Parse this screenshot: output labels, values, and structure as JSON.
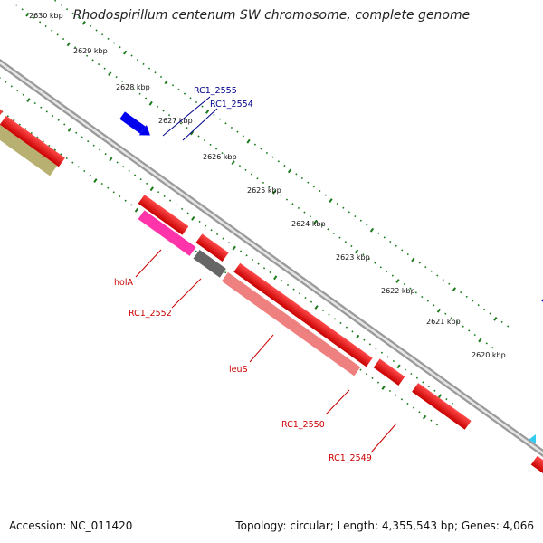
{
  "title": "Rhodospirillum centenum SW chromosome, complete genome",
  "accession": "Accession: NC_011420",
  "stats": "Topology: circular; Length: 4,355,543 bp; Genes: 4,066",
  "kbp_ticks": [
    "2630 kbp",
    "2629 kbp",
    "2628 kbp",
    "2627 kbp",
    "2626 kbp",
    "2625 kbp",
    "2624 kbp",
    "2623 kbp",
    "2622 kbp",
    "2621 kbp",
    "2620 kbp"
  ],
  "gene_labels": {
    "rc1_2555": "RC1_2555",
    "rc1_2554": "RC1_2554",
    "hola": "holA",
    "rc1_2552": "RC1_2552",
    "leus": "leuS",
    "rc1_2550": "RC1_2550",
    "rc1_2549": "RC1_2549"
  },
  "colors": {
    "cds_forward": "#0000ee",
    "cds_reverse": "#ee0000",
    "backbone": "#888888",
    "ticks": "#1a7a1a"
  }
}
